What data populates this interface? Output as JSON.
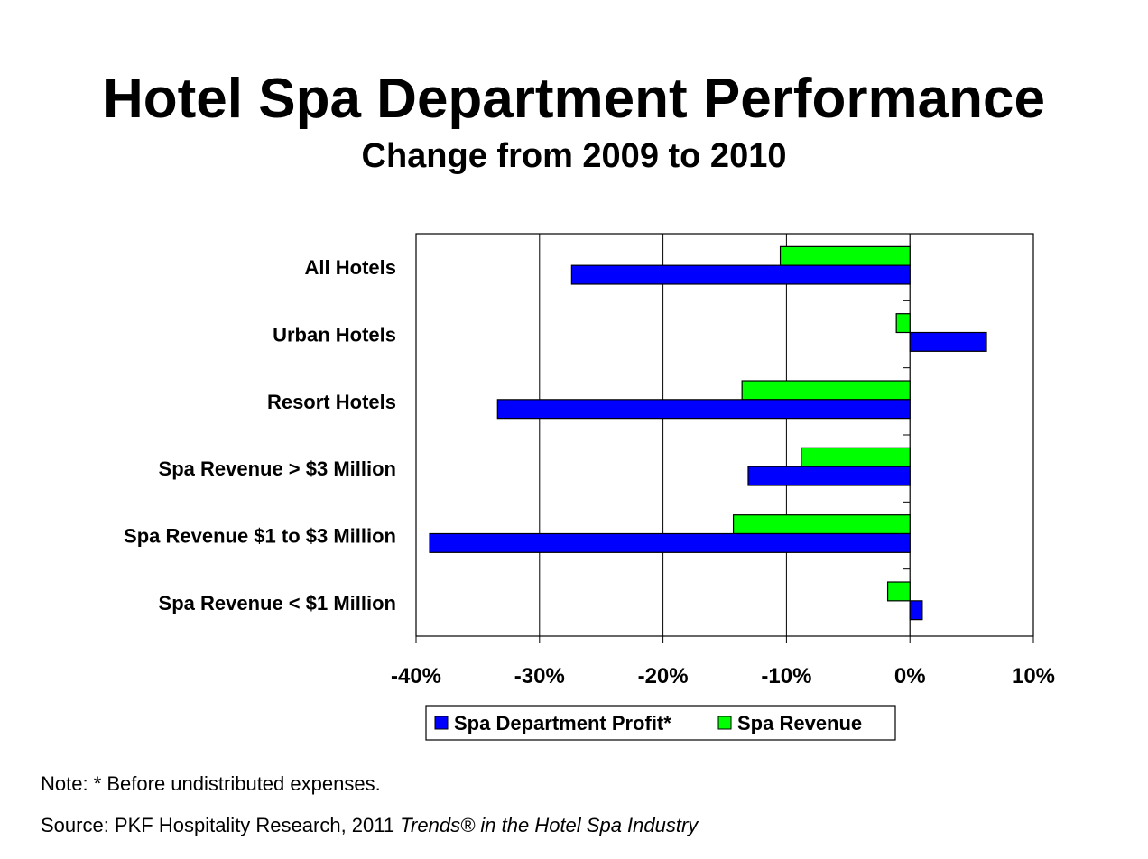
{
  "title": "Hotel Spa Department Performance",
  "subtitle": "Change from 2009 to 2010",
  "note": "Note: * Before undistributed expenses.",
  "source_prefix": "Source: PKF Hospitality Research, 2011 ",
  "source_italic": "Trends® in the Hotel Spa Industry",
  "chart_data": {
    "type": "bar",
    "orientation": "horizontal",
    "categories": [
      "All Hotels",
      "Urban Hotels",
      "Resort Hotels",
      "Spa Revenue > $3 Million",
      "Spa Revenue $1 to $3 Million",
      "Spa Revenue < $1 Million"
    ],
    "series": [
      {
        "name": "Spa Department Profit*",
        "color": "#0000FF",
        "values": [
          -27.4,
          6.2,
          -33.4,
          -13.1,
          -38.9,
          1.0
        ]
      },
      {
        "name": "Spa Revenue",
        "color": "#00FF00",
        "values": [
          -10.5,
          -1.1,
          -13.6,
          -8.8,
          -14.3,
          -1.8
        ]
      }
    ],
    "xlim": [
      -40,
      10
    ],
    "xticks": [
      "-40%",
      "-30%",
      "-20%",
      "-10%",
      "0%",
      "10%"
    ],
    "xtick_values": [
      -40,
      -30,
      -20,
      -10,
      0,
      10
    ],
    "grid": "vertical",
    "legend_position": "bottom"
  }
}
